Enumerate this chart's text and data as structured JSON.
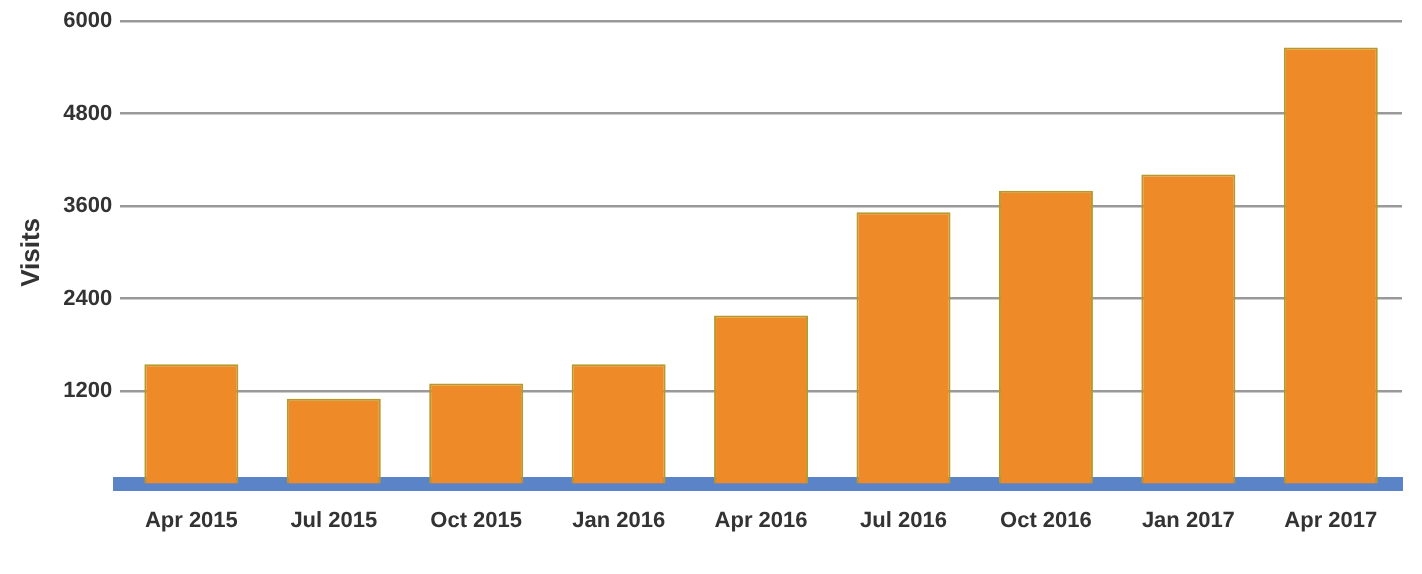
{
  "chart_data": {
    "type": "bar",
    "ylabel": "Visits",
    "categories": [
      "Apr 2015",
      "Jul 2015",
      "Oct 2015",
      "Jan 2016",
      "Apr 2016",
      "Jul 2016",
      "Oct 2016",
      "Jan 2017",
      "Apr 2017"
    ],
    "values": [
      1550,
      1100,
      1300,
      1550,
      2180,
      3520,
      3800,
      4010,
      5660
    ],
    "color": "#ee8a27",
    "ylim": [
      0,
      6000
    ],
    "yticks": [
      1200,
      2400,
      3600,
      4800,
      6000
    ],
    "grid": "y"
  }
}
